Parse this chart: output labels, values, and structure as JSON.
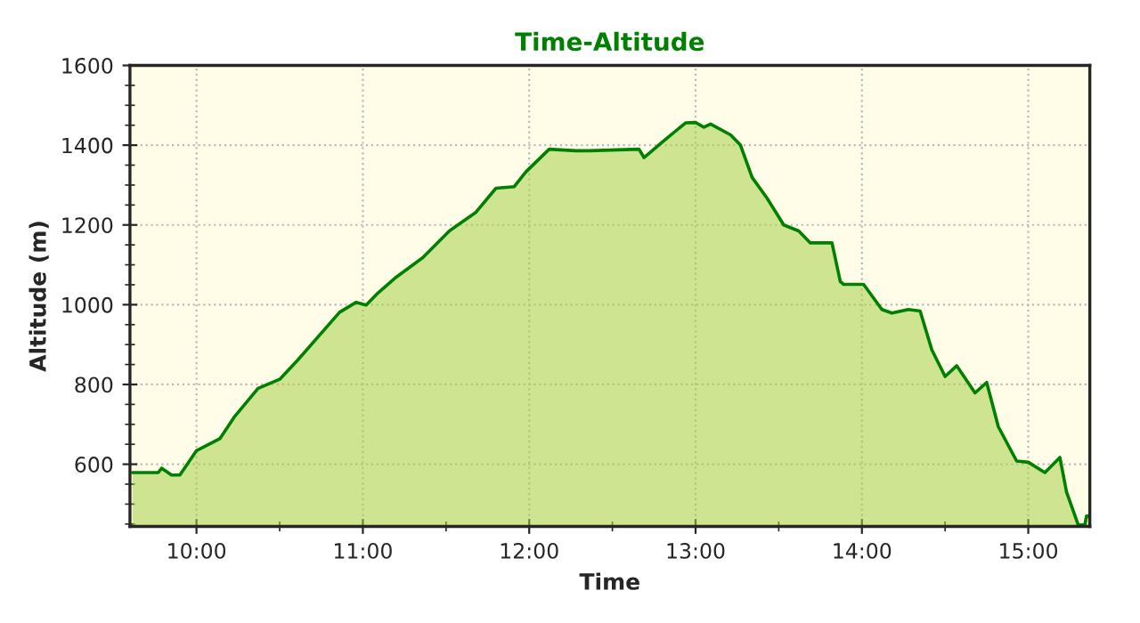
{
  "chart_data": {
    "type": "area",
    "title": "Time-Altitude",
    "xlabel": "Time",
    "ylabel": "Altitude (m)",
    "x": [
      9.615,
      9.77,
      9.79,
      9.85,
      9.9,
      10.0,
      10.14,
      10.23,
      10.37,
      10.5,
      10.61,
      10.86,
      10.96,
      11.02,
      11.09,
      11.2,
      11.36,
      11.52,
      11.68,
      11.8,
      11.91,
      11.98,
      12.12,
      12.28,
      12.36,
      12.66,
      12.69,
      12.8,
      12.94,
      13.0,
      13.05,
      13.09,
      13.21,
      13.27,
      13.34,
      13.43,
      13.53,
      13.62,
      13.69,
      13.82,
      13.87,
      13.89,
      14.01,
      14.12,
      14.18,
      14.28,
      14.35,
      14.42,
      14.5,
      14.57,
      14.68,
      14.75,
      14.82,
      14.93,
      15.0,
      15.1,
      15.19,
      15.23,
      15.3,
      15.34,
      15.35,
      15.37
    ],
    "series": [
      {
        "color": "#008000",
        "values": [
          579,
          579,
          590,
          573,
          573,
          634,
          664,
          720,
          790,
          813,
          862,
          981,
          1006,
          999,
          1029,
          1069,
          1118,
          1185,
          1232,
          1292,
          1296,
          1333,
          1390,
          1386,
          1386,
          1390,
          1369,
          1408,
          1456,
          1457,
          1445,
          1453,
          1426,
          1400,
          1319,
          1267,
          1200,
          1185,
          1155,
          1155,
          1058,
          1051,
          1051,
          988,
          979,
          988,
          984,
          887,
          820,
          847,
          779,
          805,
          694,
          608,
          605,
          579,
          617,
          530,
          448,
          448,
          470,
          470
        ]
      }
    ],
    "xlim": [
      9.6,
      15.37
    ],
    "xticks": [
      {
        "value": 10,
        "label": "10:00"
      },
      {
        "value": 11,
        "label": "11:00"
      },
      {
        "value": 12,
        "label": "12:00"
      },
      {
        "value": 13,
        "label": "13:00"
      },
      {
        "value": 14,
        "label": "14:00"
      },
      {
        "value": 15,
        "label": "15:00"
      }
    ],
    "ylim": [
      444,
      1600
    ],
    "yticks": [
      600,
      800,
      1000,
      1200,
      1400,
      1600
    ],
    "grid": true
  }
}
